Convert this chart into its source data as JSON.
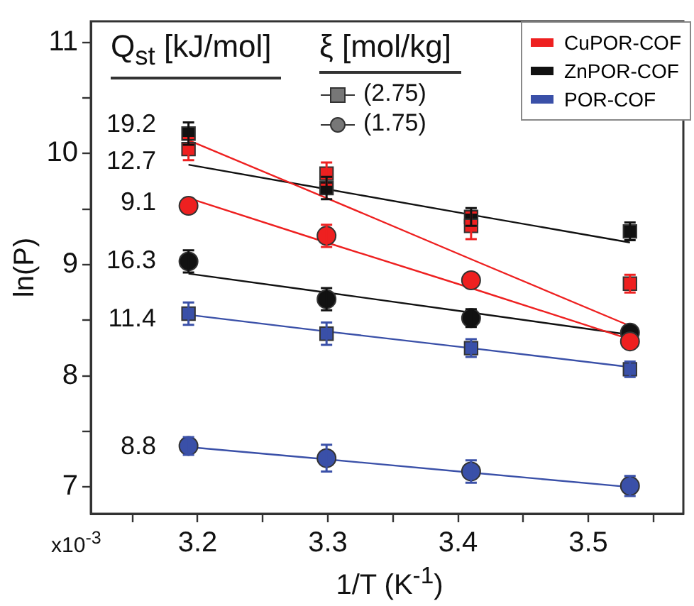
{
  "chart_data": {
    "type": "scatter",
    "xlabel": "1/T (K$^{-1}$)",
    "ylabel": "ln(P)",
    "x": [
      3.193,
      3.299,
      3.41,
      3.532
    ],
    "xlim": [
      3.118,
      3.573
    ],
    "xticks": [
      {
        "value": 3.15,
        "label": null
      },
      3.2,
      {
        "value": 3.25,
        "label": null
      },
      3.3,
      {
        "value": 3.35,
        "label": null
      },
      3.4,
      {
        "value": 3.45,
        "label": null
      },
      3.5,
      {
        "value": 3.55,
        "label": null
      }
    ],
    "ylim": [
      6.76,
      11.19
    ],
    "yticks": [
      7,
      {
        "value": 7.5,
        "label": null
      },
      8,
      {
        "value": 8.5,
        "label": null
      },
      9,
      {
        "value": 9.5,
        "label": null
      },
      10,
      {
        "value": 10.5,
        "label": null
      },
      11
    ],
    "grid": false,
    "legend": "top right",
    "series": [
      {
        "name": "CuPOR-COF",
        "color": "#ee2020",
        "type": "scatter",
        "marker": "square",
        "values": [
          10.04,
          9.82,
          9.35,
          8.83
        ],
        "errors": [
          0.1,
          0.1,
          0.12,
          0.08
        ]
      },
      {
        "color": "#ee2020",
        "type": "scatter",
        "marker": "circle",
        "values": [
          9.53,
          9.26,
          8.86,
          8.31
        ],
        "errors": [
          null,
          0.1,
          null,
          null
        ]
      },
      {
        "name": "ZnPOR-COF",
        "color": "#111111",
        "type": "scatter",
        "marker": "square",
        "values": [
          10.18,
          9.69,
          9.43,
          9.3
        ],
        "errors": [
          0.1,
          0.1,
          0.08,
          0.08
        ]
      },
      {
        "color": "#111111",
        "type": "scatter",
        "marker": "circle",
        "values": [
          9.03,
          8.69,
          8.52,
          8.39
        ],
        "errors": [
          0.1,
          0.1,
          0.08,
          null
        ]
      },
      {
        "name": "POR-COF",
        "color": "#3a50a8",
        "type": "scatter",
        "marker": "square",
        "values": [
          8.56,
          8.38,
          8.25,
          8.06
        ],
        "errors": [
          0.1,
          0.1,
          0.08,
          0.07
        ]
      },
      {
        "color": "#3a50a8",
        "type": "scatter",
        "marker": "circle",
        "values": [
          7.37,
          7.26,
          7.14,
          7.01
        ],
        "errors": [
          0.08,
          0.12,
          0.1,
          0.09
        ]
      },
      {
        "color": "#ee2020",
        "type": "line",
        "marker": "none",
        "values": [
          10.12,
          9.6,
          9.05,
          8.45
        ]
      },
      {
        "color": "#ee2020",
        "type": "line",
        "marker": "none",
        "values": [
          9.6,
          9.2,
          8.79,
          8.33
        ]
      },
      {
        "color": "#111111",
        "type": "line",
        "marker": "none",
        "values": [
          9.9,
          9.68,
          9.45,
          9.2
        ]
      },
      {
        "color": "#111111",
        "type": "line",
        "marker": "none",
        "values": [
          8.92,
          8.75,
          8.57,
          8.37
        ]
      },
      {
        "color": "#3a50a8",
        "type": "line",
        "marker": "none",
        "values": [
          8.55,
          8.4,
          8.25,
          8.08
        ]
      },
      {
        "color": "#3a50a8",
        "type": "line",
        "marker": "none",
        "values": [
          7.36,
          7.25,
          7.13,
          7.0
        ]
      }
    ],
    "annotations": [
      "Q$_{st}$ [kJ/mol]",
      "ξ [mol/kg]",
      "(2.75)",
      "(1.75)",
      "x10$^{-3}$",
      "19.2",
      "12.7",
      "9.1",
      "16.3",
      "11.4",
      "8.8"
    ]
  }
}
